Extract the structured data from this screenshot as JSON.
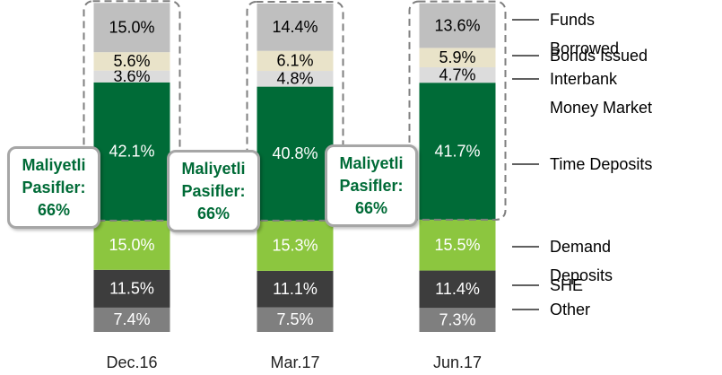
{
  "chart_data": {
    "type": "stacked_bar",
    "categories": [
      "Dec.16",
      "Mar.17",
      "Jun.17"
    ],
    "series": [
      {
        "name": "Other",
        "color": "#7f7f7f",
        "values": [
          7.4,
          7.5,
          7.3
        ],
        "value_labels": [
          "7.4%",
          "7.5%",
          "7.3%"
        ]
      },
      {
        "name": "SHE",
        "color": "#3d3d3d",
        "values": [
          11.5,
          11.1,
          11.4
        ],
        "value_labels": [
          "11.5%",
          "11.1%",
          "11.4%"
        ]
      },
      {
        "name": "Demand Deposits",
        "color": "#8cc63f",
        "values": [
          15.0,
          15.3,
          15.5
        ],
        "value_labels": [
          "15.0%",
          "15.3%",
          "15.5%"
        ]
      },
      {
        "name": "Time Deposits",
        "color": "#006b37",
        "values": [
          42.1,
          40.8,
          41.7
        ],
        "value_labels": [
          "42.1%",
          "40.8%",
          "41.7%"
        ]
      },
      {
        "name": "Interbank Money Market",
        "color": "#dcdcdc",
        "values": [
          3.6,
          4.8,
          4.7
        ],
        "value_labels": [
          "3.6%",
          "4.8%",
          "4.7%"
        ]
      },
      {
        "name": "Bonds Issued",
        "color": "#e9e3c9",
        "values": [
          5.6,
          6.1,
          5.9
        ],
        "value_labels": [
          "5.6%",
          "6.1%",
          "5.9%"
        ]
      },
      {
        "name": "Funds Borrowed",
        "color": "#bfbfbf",
        "values": [
          15.0,
          14.4,
          13.6
        ],
        "value_labels": [
          "15.0%",
          "14.4%",
          "13.6%"
        ]
      }
    ],
    "annotations": [
      {
        "lines": [
          "Maliyetli",
          "Pasifler:",
          "66%"
        ]
      },
      {
        "lines": [
          "Maliyetli",
          "Pasifler:",
          "66%"
        ]
      },
      {
        "lines": [
          "Maliyetli",
          "Pasifler:",
          "66%"
        ]
      }
    ]
  }
}
